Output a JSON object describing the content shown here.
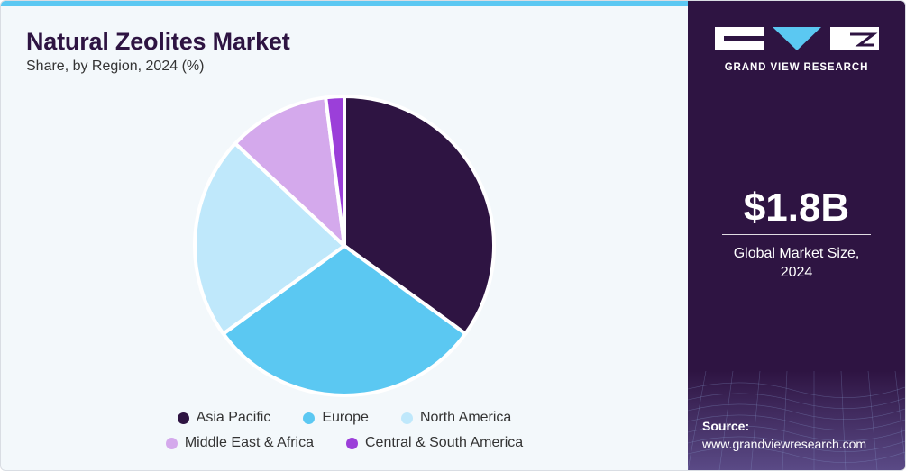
{
  "header": {
    "title": "Natural Zeolites Market",
    "subtitle": "Share, by Region, 2024 (%)"
  },
  "chart_data": {
    "type": "pie",
    "categories": [
      "Asia Pacific",
      "Europe",
      "North America",
      "Middle East & Africa",
      "Central & South America"
    ],
    "values": [
      35,
      30,
      22,
      11,
      2
    ],
    "colors": [
      "#2e1442",
      "#5bc8f2",
      "#bfe8fb",
      "#d4a9ec",
      "#9b3fd9"
    ],
    "legend_position": "bottom"
  },
  "sidebar": {
    "brand": "GRAND VIEW RESEARCH",
    "market_value": "$1.8B",
    "market_caption_line1": "Global Market Size,",
    "market_caption_line2": "2024",
    "source_label": "Source:",
    "source_url": "www.grandviewresearch.com",
    "background_color": "#2e1442"
  }
}
